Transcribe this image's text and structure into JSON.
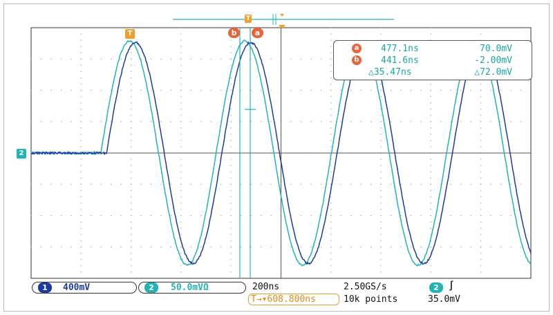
{
  "colors": {
    "ch1": "#1c3a9e",
    "ch2": "#22b4b4",
    "cursor": "#e8643c",
    "trigger": "#f0a030",
    "grid_dot": "#9a9a9a"
  },
  "markers": {
    "trigger_t": "T",
    "cursor_a": "a",
    "cursor_b": "b",
    "ch2_ground": "2"
  },
  "cursor_readout": {
    "a_time": "477.1ns",
    "a_volt": "70.0mV",
    "b_time": "441.6ns",
    "b_volt": "-2.00mV",
    "delta_time": "△35.47ns",
    "delta_volt": "△72.0mV"
  },
  "status": {
    "ch1_number": "1",
    "ch1_scale": "400mV",
    "ch2_number": "2",
    "ch2_scale": "50.0mVΩ",
    "timebase": "200ns",
    "sample_rate": "2.50GS/s",
    "record_length": "10k points",
    "trigger_position": "T→▾608.800ns",
    "trigger_source": "2",
    "trigger_slope": "∫",
    "trigger_level": "35.0mV"
  },
  "waveforms": {
    "ch1": {
      "onset_time_div": 1.9,
      "period_div": 2.48,
      "amplitude_div": 3.6,
      "phase_lag_div": 0.12
    },
    "ch2": {
      "onset_time_div": 1.9,
      "period_div": 2.48,
      "amplitude_div": 3.65,
      "phase_lag_div": 0.0
    }
  }
}
